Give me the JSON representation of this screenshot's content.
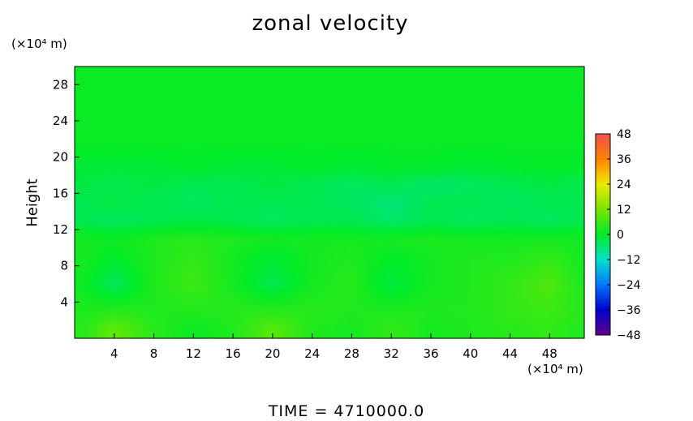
{
  "chart_data": {
    "type": "heatmap",
    "title": "zonal velocity",
    "xlabel": "",
    "x_unit": "(×10⁴ m)",
    "ylabel": "Height",
    "y_unit": "(×10⁴ m)",
    "xlim": [
      0,
      51.5
    ],
    "ylim": [
      0,
      30
    ],
    "x_ticks": [
      4,
      8,
      12,
      16,
      20,
      24,
      28,
      32,
      36,
      40,
      44,
      48
    ],
    "y_ticks": [
      4,
      8,
      12,
      16,
      20,
      24,
      28
    ],
    "colorbar": {
      "ticks": [
        48,
        36,
        24,
        12,
        0,
        -12,
        -24,
        -36,
        -48
      ],
      "min": -48,
      "max": 48
    },
    "x": [
      1,
      4,
      8,
      12,
      16,
      20,
      24,
      28,
      32,
      36,
      40,
      44,
      48,
      51
    ],
    "y": [
      1,
      3,
      6,
      9,
      11,
      13,
      15,
      17,
      19,
      22,
      26,
      29
    ],
    "values": [
      [
        4,
        10,
        4,
        1,
        3,
        9,
        3,
        2,
        5,
        2,
        3,
        4,
        5,
        3
      ],
      [
        3,
        4,
        3,
        3,
        4,
        4,
        4,
        3,
        3,
        3,
        3,
        5,
        6,
        4
      ],
      [
        1,
        -4,
        3,
        6,
        2,
        -3,
        2,
        4,
        -2,
        2,
        3,
        5,
        8,
        3
      ],
      [
        2,
        0,
        3,
        5,
        2,
        -1,
        2,
        3,
        0,
        2,
        3,
        3,
        5,
        2
      ],
      [
        2,
        1,
        3,
        4,
        3,
        2,
        2,
        2,
        2,
        3,
        2,
        2,
        2,
        2
      ],
      [
        -3,
        -4,
        -3,
        -2,
        -3,
        -4,
        -3,
        -3,
        -5,
        -3,
        -4,
        -3,
        -4,
        -3
      ],
      [
        -3,
        -2,
        -3,
        -4,
        -3,
        -3,
        -3,
        -4,
        -6,
        -3,
        -3,
        -4,
        -3,
        -3
      ],
      [
        -2,
        -3,
        -2,
        -3,
        -3,
        -2,
        -3,
        -4,
        -3,
        -5,
        -4,
        -3,
        -2,
        -3
      ],
      [
        -1,
        -1,
        -1,
        0,
        -1,
        -1,
        0,
        -1,
        0,
        0,
        -1,
        0,
        0,
        0
      ],
      [
        1,
        1,
        1,
        1,
        1,
        1,
        1,
        1,
        1,
        1,
        1,
        1,
        1,
        1
      ],
      [
        1,
        1,
        1,
        1,
        1,
        1,
        1,
        1,
        1,
        1,
        1,
        1,
        1,
        1
      ],
      [
        1,
        1,
        1,
        1,
        1,
        1,
        1,
        1,
        1,
        1,
        1,
        1,
        1,
        1
      ]
    ]
  },
  "footer": "TIME  =  4710000.0"
}
